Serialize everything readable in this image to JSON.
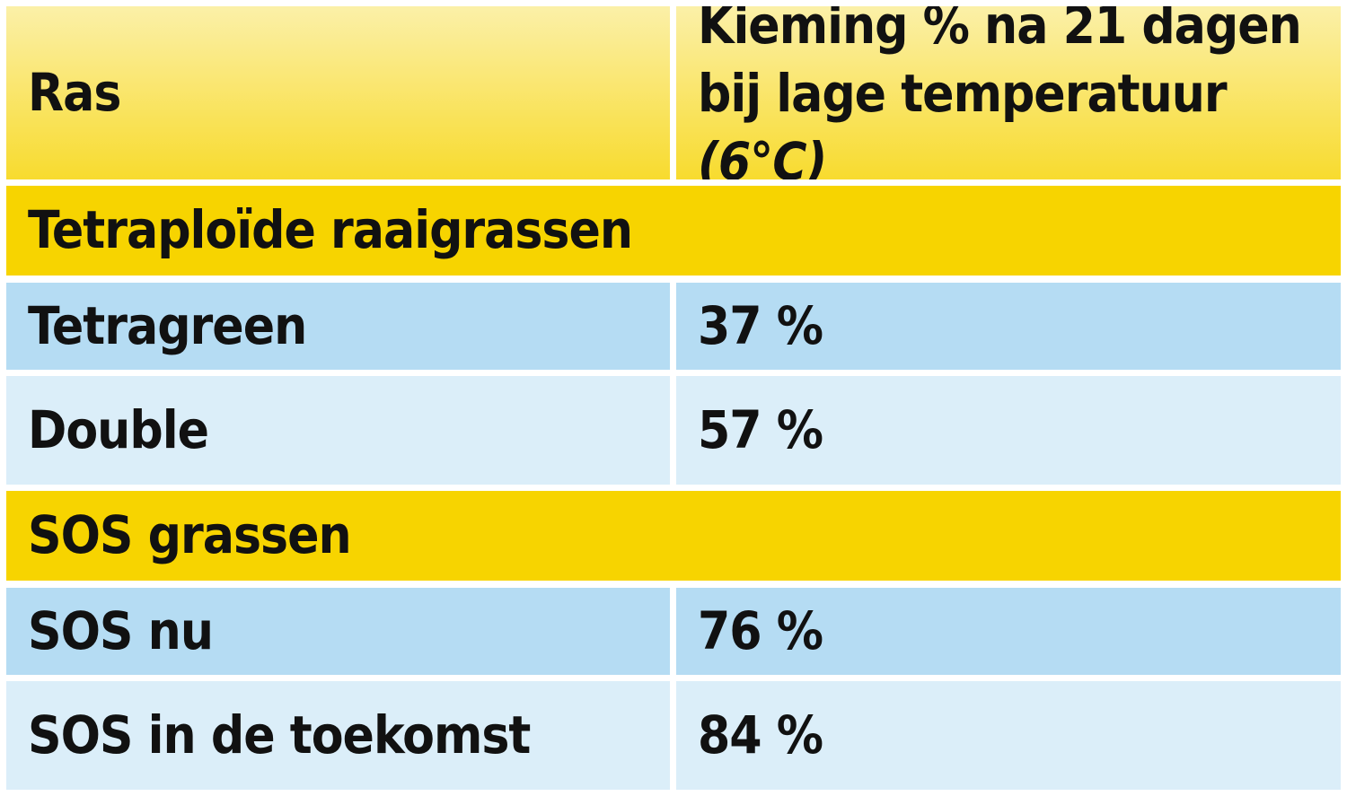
{
  "header": {
    "col1": "Ras",
    "col2_main": "Kieming % na 21 dagen bij lage temperatuur",
    "col2_italic": "(6°C)"
  },
  "groups": [
    {
      "title": "Tetraploïde raaigrassen",
      "rows": [
        {
          "ras": "Tetragreen",
          "kieming": "37 %"
        },
        {
          "ras": "Double",
          "kieming": "57 %"
        }
      ]
    },
    {
      "title": "SOS grassen",
      "rows": [
        {
          "ras": "SOS nu",
          "kieming": "76 %"
        },
        {
          "ras": "SOS in de toekomst",
          "kieming": "84 %"
        }
      ]
    }
  ],
  "colors": {
    "header_top": "#fbf0a8",
    "header_bottom": "#f8db2e",
    "group_bg": "#f7d400",
    "row_dark": "#b5dcf3",
    "row_light": "#dbeef9"
  }
}
